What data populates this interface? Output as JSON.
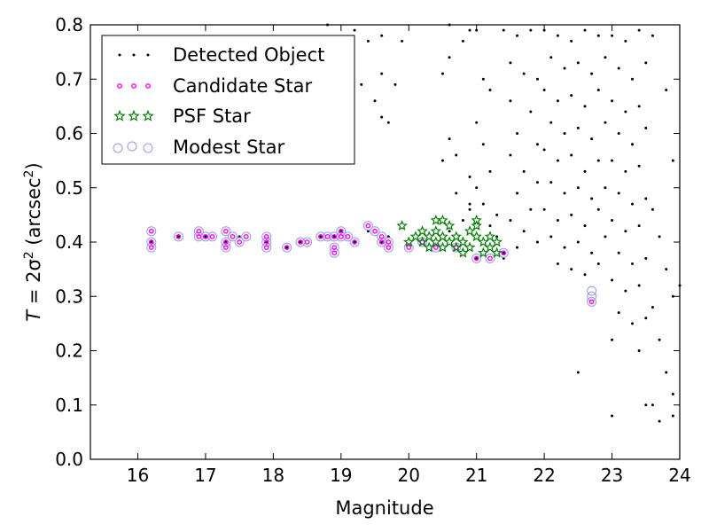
{
  "chart_data": {
    "type": "scatter",
    "xlabel": "Magnitude",
    "ylabel_parts": {
      "lead": "T",
      "eq": " = 2σ",
      "exp": "2",
      "unit": " (arcsec",
      "unit_exp": "2",
      "close": ")"
    },
    "xlim": [
      15.3,
      24
    ],
    "ylim": [
      0,
      0.8
    ],
    "xticks": [
      16,
      17,
      18,
      19,
      20,
      21,
      22,
      23,
      24
    ],
    "yticks": [
      0.0,
      0.1,
      0.2,
      0.3,
      0.4,
      0.5,
      0.6,
      0.7,
      0.8
    ],
    "xtick_labels": [
      "16",
      "17",
      "18",
      "19",
      "20",
      "21",
      "22",
      "23",
      "24"
    ],
    "ytick_labels": [
      "0.0",
      "0.1",
      "0.2",
      "0.3",
      "0.4",
      "0.5",
      "0.6",
      "0.7",
      "0.8"
    ],
    "grid": false,
    "legend_position": "top-left",
    "series": [
      {
        "name": "Detected Object",
        "marker": "dot",
        "color": "#000000",
        "points": [
          [
            16.2,
            0.4
          ],
          [
            16.6,
            0.41
          ],
          [
            17.0,
            0.41
          ],
          [
            17.3,
            0.4
          ],
          [
            17.5,
            0.41
          ],
          [
            17.9,
            0.4
          ],
          [
            18.2,
            0.39
          ],
          [
            18.4,
            0.4
          ],
          [
            18.7,
            0.41
          ],
          [
            18.9,
            0.41
          ],
          [
            19.0,
            0.42
          ],
          [
            19.2,
            0.4
          ],
          [
            19.4,
            0.42
          ],
          [
            19.6,
            0.4
          ],
          [
            19.7,
            0.41
          ],
          [
            18.8,
            0.8
          ],
          [
            19.2,
            0.79
          ],
          [
            19.4,
            0.77
          ],
          [
            19.1,
            0.76
          ],
          [
            19.6,
            0.78
          ],
          [
            19.9,
            0.77
          ],
          [
            19.6,
            0.71
          ],
          [
            19.8,
            0.69
          ],
          [
            19.3,
            0.69
          ],
          [
            19.5,
            0.66
          ],
          [
            19.6,
            0.63
          ],
          [
            19.7,
            0.62
          ],
          [
            20.6,
            0.8
          ],
          [
            20.9,
            0.79
          ],
          [
            20.6,
            0.74
          ],
          [
            20.8,
            0.77
          ],
          [
            20.5,
            0.71
          ],
          [
            20.6,
            0.59
          ],
          [
            20.7,
            0.56
          ],
          [
            20.5,
            0.55
          ],
          [
            20.9,
            0.52
          ],
          [
            20.7,
            0.49
          ],
          [
            20.9,
            0.47
          ],
          [
            20.8,
            0.44
          ],
          [
            20.9,
            0.46
          ],
          [
            20.6,
            0.42
          ],
          [
            21.0,
            0.79
          ],
          [
            21.1,
            0.7
          ],
          [
            21.2,
            0.68
          ],
          [
            21.0,
            0.62
          ],
          [
            21.1,
            0.58
          ],
          [
            21.2,
            0.53
          ],
          [
            21.0,
            0.5
          ],
          [
            21.1,
            0.47
          ],
          [
            21.3,
            0.45
          ],
          [
            21.2,
            0.43
          ],
          [
            21.0,
            0.37
          ],
          [
            21.4,
            0.38
          ],
          [
            21.3,
            0.41
          ],
          [
            21.4,
            0.79
          ],
          [
            21.6,
            0.78
          ],
          [
            21.8,
            0.79
          ],
          [
            21.5,
            0.73
          ],
          [
            21.7,
            0.71
          ],
          [
            21.9,
            0.7
          ],
          [
            21.5,
            0.66
          ],
          [
            21.8,
            0.64
          ],
          [
            21.6,
            0.6
          ],
          [
            21.9,
            0.58
          ],
          [
            21.5,
            0.56
          ],
          [
            21.7,
            0.53
          ],
          [
            21.9,
            0.51
          ],
          [
            21.6,
            0.49
          ],
          [
            21.8,
            0.46
          ],
          [
            21.5,
            0.44
          ],
          [
            21.7,
            0.42
          ],
          [
            21.9,
            0.4
          ],
          [
            21.6,
            0.39
          ],
          [
            21.4,
            0.37
          ],
          [
            22.0,
            0.79
          ],
          [
            22.2,
            0.78
          ],
          [
            22.4,
            0.77
          ],
          [
            22.6,
            0.79
          ],
          [
            22.8,
            0.78
          ],
          [
            22.1,
            0.74
          ],
          [
            22.3,
            0.72
          ],
          [
            22.5,
            0.73
          ],
          [
            22.7,
            0.71
          ],
          [
            22.9,
            0.74
          ],
          [
            22.0,
            0.68
          ],
          [
            22.2,
            0.66
          ],
          [
            22.4,
            0.67
          ],
          [
            22.6,
            0.65
          ],
          [
            22.8,
            0.68
          ],
          [
            22.1,
            0.62
          ],
          [
            22.3,
            0.6
          ],
          [
            22.5,
            0.61
          ],
          [
            22.7,
            0.59
          ],
          [
            22.9,
            0.62
          ],
          [
            22.0,
            0.57
          ],
          [
            22.2,
            0.55
          ],
          [
            22.4,
            0.56
          ],
          [
            22.6,
            0.53
          ],
          [
            22.8,
            0.55
          ],
          [
            22.1,
            0.51
          ],
          [
            22.3,
            0.49
          ],
          [
            22.5,
            0.5
          ],
          [
            22.7,
            0.48
          ],
          [
            22.9,
            0.5
          ],
          [
            22.0,
            0.46
          ],
          [
            22.2,
            0.44
          ],
          [
            22.4,
            0.45
          ],
          [
            22.6,
            0.43
          ],
          [
            22.8,
            0.46
          ],
          [
            22.1,
            0.41
          ],
          [
            22.3,
            0.39
          ],
          [
            22.5,
            0.4
          ],
          [
            22.7,
            0.38
          ],
          [
            22.9,
            0.41
          ],
          [
            22.2,
            0.36
          ],
          [
            22.4,
            0.35
          ],
          [
            22.6,
            0.34
          ],
          [
            22.8,
            0.36
          ],
          [
            22.5,
            0.16
          ],
          [
            23.0,
            0.78
          ],
          [
            23.2,
            0.77
          ],
          [
            23.4,
            0.79
          ],
          [
            23.6,
            0.78
          ],
          [
            23.1,
            0.72
          ],
          [
            23.3,
            0.7
          ],
          [
            23.5,
            0.73
          ],
          [
            23.0,
            0.66
          ],
          [
            23.2,
            0.64
          ],
          [
            23.4,
            0.65
          ],
          [
            23.1,
            0.6
          ],
          [
            23.3,
            0.58
          ],
          [
            23.5,
            0.61
          ],
          [
            23.0,
            0.55
          ],
          [
            23.2,
            0.53
          ],
          [
            23.4,
            0.54
          ],
          [
            23.1,
            0.49
          ],
          [
            23.3,
            0.47
          ],
          [
            23.5,
            0.48
          ],
          [
            23.0,
            0.44
          ],
          [
            23.2,
            0.42
          ],
          [
            23.4,
            0.43
          ],
          [
            23.1,
            0.38
          ],
          [
            23.3,
            0.36
          ],
          [
            23.5,
            0.37
          ],
          [
            23.0,
            0.33
          ],
          [
            23.2,
            0.31
          ],
          [
            23.4,
            0.32
          ],
          [
            23.1,
            0.27
          ],
          [
            23.3,
            0.25
          ],
          [
            23.5,
            0.26
          ],
          [
            23.0,
            0.22
          ],
          [
            23.4,
            0.2
          ],
          [
            23.0,
            0.08
          ],
          [
            23.6,
            0.46
          ],
          [
            23.7,
            0.41
          ],
          [
            23.8,
            0.35
          ],
          [
            23.9,
            0.3
          ],
          [
            23.6,
            0.28
          ],
          [
            23.7,
            0.22
          ],
          [
            23.8,
            0.16
          ],
          [
            23.9,
            0.12
          ],
          [
            23.7,
            0.07
          ],
          [
            23.5,
            0.1
          ],
          [
            23.6,
            0.1
          ],
          [
            23.9,
            0.08
          ],
          [
            24.0,
            0.32
          ],
          [
            23.9,
            0.55
          ],
          [
            23.8,
            0.68
          ]
        ]
      },
      {
        "name": "Candidate Star",
        "marker": "small-circle",
        "color": "#ff00ff",
        "points": [
          [
            16.2,
            0.42
          ],
          [
            16.2,
            0.4
          ],
          [
            16.2,
            0.39
          ],
          [
            16.6,
            0.41
          ],
          [
            16.9,
            0.42
          ],
          [
            16.9,
            0.41
          ],
          [
            17.0,
            0.41
          ],
          [
            17.1,
            0.41
          ],
          [
            17.3,
            0.42
          ],
          [
            17.3,
            0.4
          ],
          [
            17.3,
            0.39
          ],
          [
            17.4,
            0.41
          ],
          [
            17.5,
            0.4
          ],
          [
            17.6,
            0.41
          ],
          [
            17.9,
            0.41
          ],
          [
            17.9,
            0.4
          ],
          [
            17.9,
            0.39
          ],
          [
            18.2,
            0.39
          ],
          [
            18.4,
            0.4
          ],
          [
            18.5,
            0.4
          ],
          [
            18.7,
            0.41
          ],
          [
            18.8,
            0.41
          ],
          [
            18.9,
            0.41
          ],
          [
            18.9,
            0.39
          ],
          [
            18.9,
            0.38
          ],
          [
            19.0,
            0.42
          ],
          [
            19.0,
            0.41
          ],
          [
            19.1,
            0.41
          ],
          [
            19.2,
            0.4
          ],
          [
            19.4,
            0.43
          ],
          [
            19.5,
            0.42
          ],
          [
            19.6,
            0.4
          ],
          [
            19.7,
            0.4
          ],
          [
            19.7,
            0.39
          ],
          [
            19.6,
            0.41
          ],
          [
            20.0,
            0.39
          ],
          [
            20.2,
            0.4
          ],
          [
            20.4,
            0.39
          ],
          [
            20.7,
            0.39
          ],
          [
            21.0,
            0.37
          ],
          [
            21.2,
            0.37
          ],
          [
            21.4,
            0.38
          ],
          [
            22.7,
            0.29
          ]
        ]
      },
      {
        "name": "PSF Star",
        "marker": "star",
        "color": "#008000",
        "points": [
          [
            19.9,
            0.43
          ],
          [
            20.0,
            0.4
          ],
          [
            20.1,
            0.41
          ],
          [
            20.2,
            0.4
          ],
          [
            20.2,
            0.42
          ],
          [
            20.3,
            0.41
          ],
          [
            20.3,
            0.39
          ],
          [
            20.4,
            0.42
          ],
          [
            20.4,
            0.4
          ],
          [
            20.5,
            0.41
          ],
          [
            20.5,
            0.39
          ],
          [
            20.6,
            0.4
          ],
          [
            20.6,
            0.43
          ],
          [
            20.7,
            0.41
          ],
          [
            20.7,
            0.39
          ],
          [
            20.8,
            0.38
          ],
          [
            20.8,
            0.4
          ],
          [
            20.9,
            0.42
          ],
          [
            20.9,
            0.39
          ],
          [
            21.0,
            0.41
          ],
          [
            21.0,
            0.43
          ],
          [
            21.1,
            0.4
          ],
          [
            21.1,
            0.38
          ],
          [
            21.2,
            0.41
          ],
          [
            21.2,
            0.39
          ],
          [
            21.3,
            0.4
          ],
          [
            21.3,
            0.38
          ],
          [
            20.4,
            0.44
          ],
          [
            20.5,
            0.44
          ],
          [
            21.0,
            0.44
          ]
        ]
      },
      {
        "name": "Modest Star",
        "marker": "open-circle",
        "color": "#9999ee",
        "points": [
          [
            16.2,
            0.42
          ],
          [
            16.2,
            0.4
          ],
          [
            16.2,
            0.39
          ],
          [
            16.6,
            0.41
          ],
          [
            16.9,
            0.42
          ],
          [
            16.9,
            0.41
          ],
          [
            17.0,
            0.41
          ],
          [
            17.1,
            0.41
          ],
          [
            17.3,
            0.42
          ],
          [
            17.3,
            0.4
          ],
          [
            17.3,
            0.39
          ],
          [
            17.4,
            0.41
          ],
          [
            17.5,
            0.4
          ],
          [
            17.6,
            0.41
          ],
          [
            17.9,
            0.41
          ],
          [
            17.9,
            0.4
          ],
          [
            17.9,
            0.39
          ],
          [
            18.2,
            0.39
          ],
          [
            18.4,
            0.4
          ],
          [
            18.5,
            0.4
          ],
          [
            18.7,
            0.41
          ],
          [
            18.8,
            0.41
          ],
          [
            18.9,
            0.41
          ],
          [
            18.9,
            0.39
          ],
          [
            18.9,
            0.38
          ],
          [
            19.0,
            0.42
          ],
          [
            19.0,
            0.41
          ],
          [
            19.1,
            0.41
          ],
          [
            19.2,
            0.4
          ],
          [
            19.4,
            0.43
          ],
          [
            19.5,
            0.42
          ],
          [
            19.6,
            0.4
          ],
          [
            19.7,
            0.4
          ],
          [
            19.7,
            0.39
          ],
          [
            19.6,
            0.41
          ],
          [
            20.0,
            0.39
          ],
          [
            20.2,
            0.4
          ],
          [
            20.4,
            0.39
          ],
          [
            20.7,
            0.39
          ],
          [
            21.0,
            0.37
          ],
          [
            21.2,
            0.37
          ],
          [
            21.4,
            0.38
          ],
          [
            22.7,
            0.29
          ],
          [
            22.7,
            0.3
          ],
          [
            22.7,
            0.31
          ]
        ]
      }
    ]
  }
}
